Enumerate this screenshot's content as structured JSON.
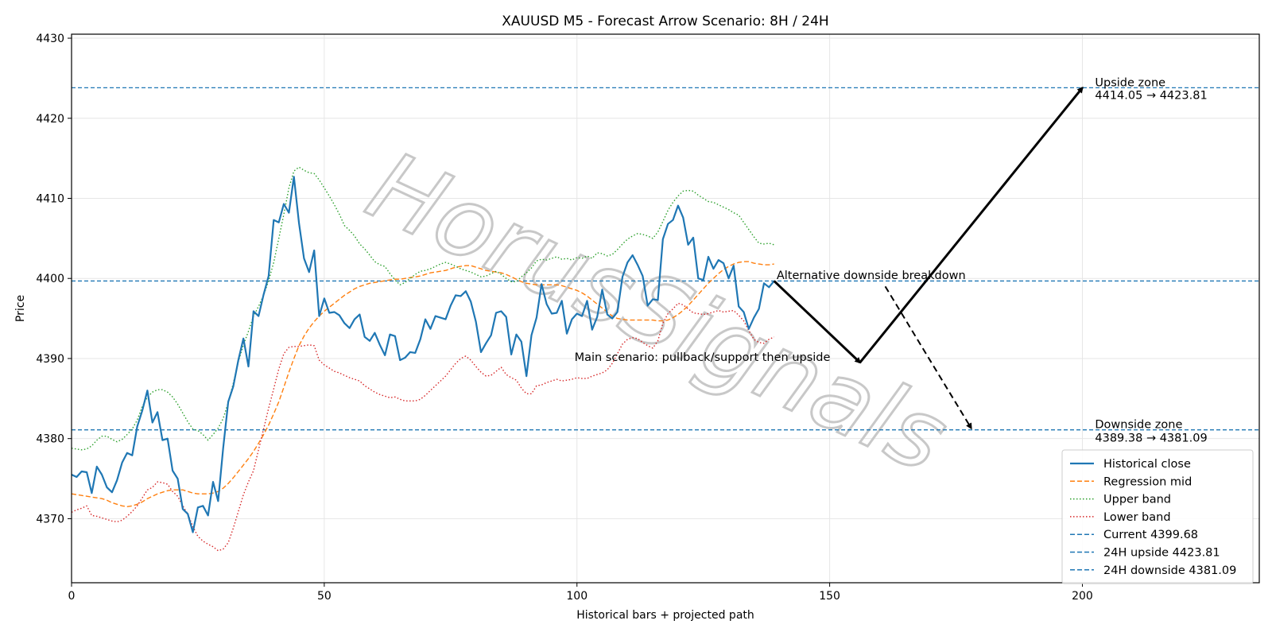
{
  "chart_data": {
    "type": "line",
    "title": "XAUUSD M5 - Forecast Arrow Scenario: 8H / 24H",
    "xlabel": "Historical bars + projected path",
    "ylabel": "Price",
    "xlim": [
      0,
      235
    ],
    "ylim": [
      4362,
      4430.5
    ],
    "xticks": [
      0,
      50,
      100,
      150,
      200
    ],
    "yticks": [
      4370,
      4380,
      4390,
      4400,
      4410,
      4420,
      4430
    ],
    "grid": true,
    "legend_position": "lower-right",
    "watermark": "HorusSignals",
    "series": [
      {
        "name": "Historical close",
        "style": "solid",
        "color": "#1f77b4",
        "values": [
          4375.5,
          4375.2,
          4375.9,
          4375.8,
          4373.2,
          4376.5,
          4375.5,
          4373.9,
          4373.3,
          4374.8,
          4377.0,
          4378.2,
          4377.9,
          4381.5,
          4383.5,
          4386.0,
          4382.0,
          4383.3,
          4379.8,
          4380.0,
          4376.0,
          4375.0,
          4371.2,
          4370.6,
          4368.3,
          4371.4,
          4371.6,
          4370.4,
          4374.6,
          4372.2,
          4378.8,
          4384.6,
          4386.5,
          4389.8,
          4392.5,
          4389.0,
          4395.9,
          4395.3,
          4398.0,
          4400.3,
          4407.3,
          4407.0,
          4409.3,
          4408.2,
          4412.7,
          4406.9,
          4402.5,
          4400.8,
          4403.5,
          4395.3,
          4397.5,
          4395.7,
          4395.8,
          4395.4,
          4394.4,
          4393.8,
          4394.9,
          4395.5,
          4392.7,
          4392.2,
          4393.2,
          4391.7,
          4390.4,
          4393.0,
          4392.8,
          4389.8,
          4390.1,
          4390.8,
          4390.7,
          4392.4,
          4394.9,
          4393.7,
          4395.3,
          4395.1,
          4394.9,
          4396.6,
          4397.9,
          4397.8,
          4398.4,
          4397.1,
          4394.6,
          4390.8,
          4391.9,
          4392.9,
          4395.7,
          4395.9,
          4395.2,
          4390.5,
          4393.0,
          4392.1,
          4387.8,
          4392.9,
          4395.1,
          4399.3,
          4396.8,
          4395.6,
          4395.7,
          4397.2,
          4393.1,
          4394.9,
          4395.6,
          4395.3,
          4397.2,
          4393.6,
          4395.2,
          4398.6,
          4395.5,
          4395.0,
          4395.8,
          4400.2,
          4402.0,
          4402.9,
          4401.7,
          4400.3,
          4396.6,
          4397.4,
          4397.3,
          4404.9,
          4406.8,
          4407.3,
          4409.1,
          4407.6,
          4404.2,
          4405.1,
          4400.0,
          4399.8,
          4402.7,
          4401.2,
          4402.3,
          4401.9,
          4400.0,
          4401.6,
          4396.5,
          4395.8,
          4393.7,
          4395.1,
          4396.2,
          4399.4,
          4398.9,
          4399.68
        ]
      },
      {
        "name": "Regression mid",
        "style": "dashed",
        "color": "#ff7f0e",
        "values": [
          4373.1,
          4373.0,
          4372.9,
          4372.8,
          4372.7,
          4372.6,
          4372.5,
          4372.3,
          4372.0,
          4371.8,
          4371.6,
          4371.5,
          4371.6,
          4371.8,
          4372.1,
          4372.5,
          4372.8,
          4373.1,
          4373.3,
          4373.5,
          4373.6,
          4373.6,
          4373.6,
          4373.4,
          4373.2,
          4373.1,
          4373.1,
          4373.1,
          4373.2,
          4373.4,
          4373.8,
          4374.4,
          4375.1,
          4375.9,
          4376.7,
          4377.5,
          4378.4,
          4379.4,
          4380.5,
          4381.7,
          4383.1,
          4384.6,
          4386.4,
          4388.3,
          4390.0,
          4391.6,
          4392.8,
          4393.8,
          4394.6,
          4395.3,
          4395.9,
          4396.4,
          4396.9,
          4397.4,
          4397.9,
          4398.3,
          4398.7,
          4399.0,
          4399.2,
          4399.4,
          4399.5,
          4399.6,
          4399.7,
          4399.8,
          4399.9,
          4399.9,
          4400.0,
          4400.1,
          4400.2,
          4400.3,
          4400.5,
          4400.7,
          4400.8,
          4400.9,
          4401.0,
          4401.2,
          4401.4,
          4401.5,
          4401.6,
          4401.6,
          4401.4,
          4401.2,
          4401.0,
          4400.9,
          4400.8,
          4400.7,
          4400.5,
          4400.2,
          4399.9,
          4399.6,
          4399.4,
          4399.3,
          4399.2,
          4399.2,
          4399.2,
          4399.2,
          4399.2,
          4399.1,
          4398.9,
          4398.7,
          4398.5,
          4398.2,
          4397.8,
          4397.3,
          4396.8,
          4396.3,
          4395.8,
          4395.3,
          4395.0,
          4394.9,
          4394.8,
          4394.8,
          4394.8,
          4394.8,
          4394.8,
          4394.8,
          4394.7,
          4394.7,
          4394.8,
          4395.1,
          4395.5,
          4396.0,
          4396.6,
          4397.3,
          4398.0,
          4398.7,
          4399.4,
          4400.0,
          4400.6,
          4401.1,
          4401.5,
          4401.8,
          4402.0,
          4402.1,
          4402.1,
          4401.9,
          4401.8,
          4401.7,
          4401.7,
          4401.8
        ]
      },
      {
        "name": "Upper band",
        "style": "dotted",
        "color": "#2ca02c",
        "values": [
          4378.8,
          4378.7,
          4378.6,
          4378.7,
          4379.1,
          4379.8,
          4380.3,
          4380.3,
          4379.9,
          4379.6,
          4379.9,
          4380.5,
          4381.2,
          4382.3,
          4384.0,
          4385.2,
          4385.8,
          4386.1,
          4386.1,
          4385.8,
          4385.2,
          4384.3,
          4383.2,
          4382.1,
          4381.2,
          4381.0,
          4380.5,
          4379.8,
          4380.5,
          4381.3,
          4382.5,
          4384.5,
          4386.9,
          4389.6,
          4391.7,
          4393.4,
          4395.3,
          4396.5,
          4397.9,
          4399.7,
          4402.0,
          4405.0,
          4408.0,
          4411.3,
          4413.4,
          4413.9,
          4413.5,
          4413.2,
          4413.1,
          4412.3,
          4411.3,
          4410.3,
          4409.2,
          4408.0,
          4406.6,
          4406.0,
          4405.3,
          4404.3,
          4403.7,
          4402.9,
          4402.1,
          4401.7,
          4401.5,
          4400.6,
          4399.8,
          4399.2,
          4399.5,
          4400.0,
          4400.5,
          4400.9,
          4401.0,
          4401.2,
          4401.5,
          4401.8,
          4402.0,
          4401.8,
          4401.5,
          4401.2,
          4401.0,
          4400.8,
          4400.5,
          4400.2,
          4400.3,
          4400.6,
          4400.9,
          4400.5,
          4400.0,
          4399.6,
          4399.6,
          4400.2,
          4400.7,
          4401.3,
          4402.2,
          4402.4,
          4402.3,
          4402.5,
          4402.7,
          4402.4,
          4402.5,
          4402.3,
          4402.6,
          4402.5,
          4402.8,
          4402.5,
          4403.2,
          4403.1,
          4402.8,
          4403.0,
          4403.6,
          4404.3,
          4404.9,
          4405.3,
          4405.6,
          4405.5,
          4405.3,
          4405.0,
          4405.8,
          4407.1,
          4408.5,
          4409.5,
          4410.3,
          4410.9,
          4411.0,
          4410.9,
          4410.4,
          4410.0,
          4409.6,
          4409.5,
          4409.2,
          4408.9,
          4408.6,
          4408.2,
          4407.9,
          4407.0,
          4406.1,
          4405.2,
          4404.4,
          4404.3,
          4404.4,
          4404.2
        ]
      },
      {
        "name": "Lower band",
        "style": "dotted",
        "color": "#d62728",
        "values": [
          4370.8,
          4371.1,
          4371.3,
          4371.6,
          4370.4,
          4370.3,
          4370.1,
          4369.9,
          4369.7,
          4369.6,
          4369.8,
          4370.3,
          4370.9,
          4371.6,
          4372.6,
          4373.6,
          4373.9,
          4374.6,
          4374.5,
          4374.3,
          4373.4,
          4372.8,
          4371.6,
          4370.6,
          4369.0,
          4367.8,
          4367.2,
          4366.8,
          4366.5,
          4366.0,
          4366.2,
          4367.0,
          4368.8,
          4370.9,
          4373.0,
          4374.6,
          4376.0,
          4378.6,
          4381.2,
          4383.8,
          4386.2,
          4388.7,
          4390.6,
          4391.4,
          4391.5,
          4391.5,
          4391.6,
          4391.7,
          4391.6,
          4389.8,
          4389.2,
          4388.8,
          4388.4,
          4388.2,
          4387.9,
          4387.6,
          4387.4,
          4387.2,
          4386.6,
          4386.2,
          4385.8,
          4385.5,
          4385.3,
          4385.1,
          4385.2,
          4384.9,
          4384.7,
          4384.7,
          4384.7,
          4384.9,
          4385.4,
          4386.0,
          4386.6,
          4387.2,
          4387.8,
          4388.6,
          4389.4,
          4390.0,
          4390.3,
          4389.8,
          4389.0,
          4388.3,
          4387.8,
          4387.9,
          4388.4,
          4388.9,
          4388.0,
          4387.6,
          4387.3,
          4386.3,
          4385.6,
          4385.6,
          4386.6,
          4386.7,
          4387.0,
          4387.2,
          4387.4,
          4387.2,
          4387.3,
          4387.4,
          4387.6,
          4387.5,
          4387.5,
          4387.8,
          4388.0,
          4388.2,
          4388.6,
          4389.4,
          4390.6,
          4391.8,
          4392.4,
          4392.6,
          4392.5,
          4392.0,
          4391.6,
          4391.3,
          4392.2,
          4394.4,
          4395.6,
          4396.2,
          4396.9,
          4396.7,
          4396.2,
          4395.7,
          4395.6,
          4395.5,
          4395.6,
          4395.8,
          4396.0,
          4395.8,
          4395.9,
          4396.0,
          4395.4,
          4394.7,
          4393.5,
          4392.4,
          4392.0,
          4391.9,
          4392.4,
          4392.7
        ]
      }
    ],
    "hlines": [
      {
        "name": "Current 4399.68",
        "y": 4399.68,
        "color": "#1f77b4"
      },
      {
        "name": "24H upside 4423.81",
        "y": 4423.81,
        "color": "#1f77b4"
      },
      {
        "name": "24H downside 4381.09",
        "y": 4381.09,
        "color": "#1f77b4"
      }
    ],
    "arrows": [
      {
        "name": "main-pullback",
        "from": [
          139,
          4399.68
        ],
        "to": [
          156,
          4389.5
        ],
        "style": "solid"
      },
      {
        "name": "main-upside",
        "from": [
          156,
          4389.5
        ],
        "to": [
          200,
          4423.81
        ],
        "style": "solid"
      },
      {
        "name": "alt-downside",
        "from": [
          161,
          4399.0
        ],
        "to": [
          178,
          4381.3
        ],
        "style": "dashed"
      }
    ],
    "annotations": [
      {
        "name": "main-scenario",
        "text": "Main scenario: pullback/support then upside",
        "x": 99.5,
        "y": 4389.7
      },
      {
        "name": "alt-scenario",
        "text": "Alternative downside breakdown",
        "x": 139.5,
        "y": 4399.9
      },
      {
        "name": "upside-zone-title",
        "text": "Upside zone",
        "x": 202.5,
        "y": 4424.0
      },
      {
        "name": "upside-zone-range",
        "text": "4414.05 → 4423.81",
        "x": 202.5,
        "y": 4422.4
      },
      {
        "name": "downside-zone-title",
        "text": "Downside zone",
        "x": 202.5,
        "y": 4381.3
      },
      {
        "name": "downside-zone-range",
        "text": "4389.38 → 4381.09",
        "x": 202.5,
        "y": 4379.6
      }
    ]
  }
}
